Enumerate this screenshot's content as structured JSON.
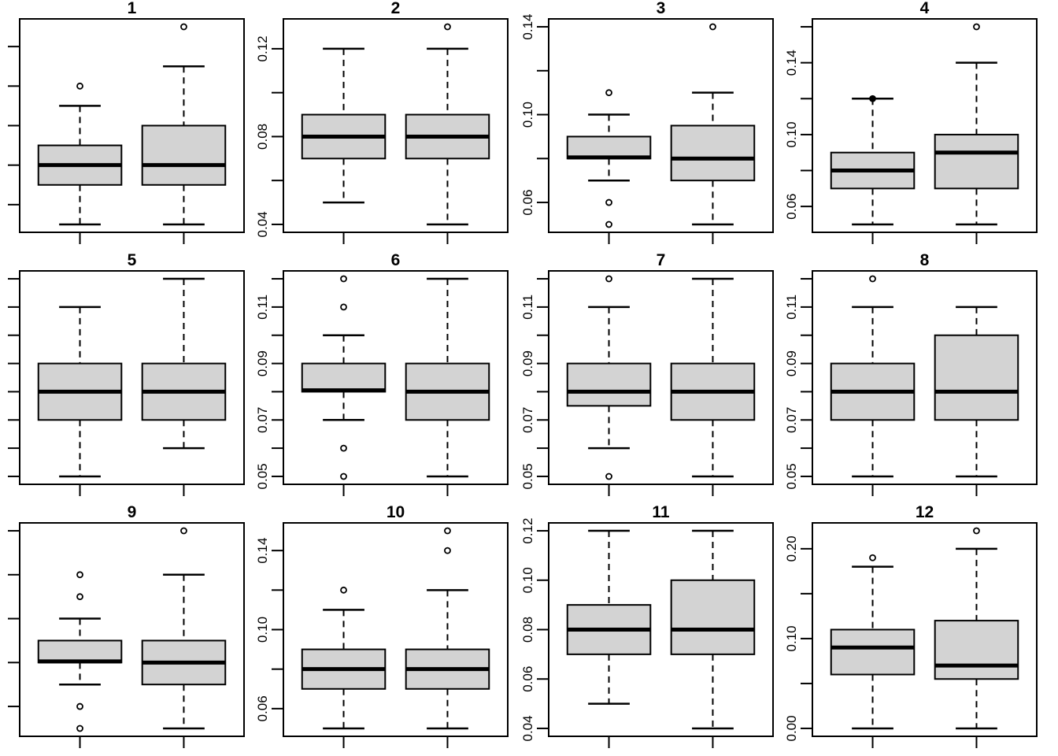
{
  "figure": {
    "type": "boxplot-grid",
    "rows": 3,
    "cols": 4,
    "background": "#ffffff",
    "line_color": "#000000",
    "box_fill": "#d3d3d3",
    "x_axis_labels": [],
    "groups_per_panel": 2
  },
  "chart_data": {
    "type": "boxplot",
    "title": "",
    "xlabel": "",
    "ylabel": "",
    "grid": false,
    "panels": [
      {
        "id": 1,
        "title": "1",
        "yticks": {
          "values": [
            0.04,
            0.06,
            0.08,
            0.1,
            0.12
          ],
          "labels": [
            null,
            null,
            null,
            null,
            null
          ],
          "labels_visible": false
        },
        "boxes": [
          {
            "low": 0.03,
            "q1": 0.05,
            "median": 0.06,
            "q3": 0.07,
            "high": 0.09,
            "outliers": [
              {
                "v": 0.1,
                "filled": false
              }
            ]
          },
          {
            "low": 0.03,
            "q1": 0.05,
            "median": 0.06,
            "q3": 0.08,
            "high": 0.11,
            "outliers": [
              {
                "v": 0.13,
                "filled": false
              }
            ]
          }
        ]
      },
      {
        "id": 2,
        "title": "2",
        "yticks": {
          "values": [
            0.04,
            0.06,
            0.08,
            0.1,
            0.12
          ],
          "labels": [
            "0.04",
            null,
            "0.08",
            null,
            "0.12"
          ],
          "labels_visible": true
        },
        "boxes": [
          {
            "low": 0.05,
            "q1": 0.07,
            "median": 0.08,
            "q3": 0.09,
            "high": 0.12,
            "outliers": []
          },
          {
            "low": 0.04,
            "q1": 0.07,
            "median": 0.08,
            "q3": 0.09,
            "high": 0.12,
            "outliers": [
              {
                "v": 0.13,
                "filled": false
              }
            ]
          }
        ]
      },
      {
        "id": 3,
        "title": "3",
        "yticks": {
          "values": [
            0.06,
            0.08,
            0.1,
            0.12,
            0.14
          ],
          "labels": [
            "0.06",
            null,
            "0.10",
            null,
            "0.14"
          ],
          "labels_visible": true
        },
        "boxes": [
          {
            "low": 0.07,
            "q1": 0.08,
            "median": 0.0805,
            "q3": 0.09,
            "high": 0.1,
            "outliers": [
              {
                "v": 0.11,
                "filled": false
              },
              {
                "v": 0.06,
                "filled": false
              },
              {
                "v": 0.05,
                "filled": false
              }
            ]
          },
          {
            "low": 0.05,
            "q1": 0.07,
            "median": 0.08,
            "q3": 0.095,
            "high": 0.11,
            "outliers": [
              {
                "v": 0.14,
                "filled": false
              }
            ]
          }
        ]
      },
      {
        "id": 4,
        "title": "4",
        "yticks": {
          "values": [
            0.06,
            0.08,
            0.1,
            0.12,
            0.14,
            0.16
          ],
          "labels": [
            "0.06",
            null,
            "0.10",
            null,
            "0.14",
            null
          ],
          "labels_visible": true
        },
        "boxes": [
          {
            "low": 0.05,
            "q1": 0.07,
            "median": 0.08,
            "q3": 0.09,
            "high": 0.12,
            "outliers": [
              {
                "v": 0.12,
                "filled": true
              }
            ]
          },
          {
            "low": 0.05,
            "q1": 0.07,
            "median": 0.09,
            "q3": 0.1,
            "high": 0.14,
            "outliers": [
              {
                "v": 0.16,
                "filled": false
              }
            ]
          }
        ]
      },
      {
        "id": 5,
        "title": "5",
        "yticks": {
          "values": [
            0.05,
            0.06,
            0.07,
            0.08,
            0.09,
            0.1,
            0.11,
            0.12
          ],
          "labels": [
            null,
            null,
            null,
            null,
            null,
            null,
            null,
            null
          ],
          "labels_visible": false
        },
        "boxes": [
          {
            "low": 0.05,
            "q1": 0.07,
            "median": 0.08,
            "q3": 0.09,
            "high": 0.11,
            "outliers": []
          },
          {
            "low": 0.06,
            "q1": 0.07,
            "median": 0.08,
            "q3": 0.09,
            "high": 0.12,
            "outliers": []
          }
        ]
      },
      {
        "id": 6,
        "title": "6",
        "yticks": {
          "values": [
            0.05,
            0.06,
            0.07,
            0.08,
            0.09,
            0.1,
            0.11,
            0.12
          ],
          "labels": [
            "0.05",
            null,
            "0.07",
            null,
            "0.09",
            null,
            "0.11",
            null
          ],
          "labels_visible": true
        },
        "boxes": [
          {
            "low": 0.07,
            "q1": 0.08,
            "median": 0.0805,
            "q3": 0.09,
            "high": 0.1,
            "outliers": [
              {
                "v": 0.12,
                "filled": false
              },
              {
                "v": 0.11,
                "filled": false
              },
              {
                "v": 0.06,
                "filled": false
              },
              {
                "v": 0.05,
                "filled": false
              }
            ]
          },
          {
            "low": 0.05,
            "q1": 0.07,
            "median": 0.08,
            "q3": 0.09,
            "high": 0.12,
            "outliers": []
          }
        ]
      },
      {
        "id": 7,
        "title": "7",
        "yticks": {
          "values": [
            0.05,
            0.06,
            0.07,
            0.08,
            0.09,
            0.1,
            0.11,
            0.12
          ],
          "labels": [
            "0.05",
            null,
            "0.07",
            null,
            "0.09",
            null,
            "0.11",
            null
          ],
          "labels_visible": true
        },
        "boxes": [
          {
            "low": 0.06,
            "q1": 0.075,
            "median": 0.08,
            "q3": 0.09,
            "high": 0.11,
            "outliers": [
              {
                "v": 0.12,
                "filled": false
              },
              {
                "v": 0.05,
                "filled": false
              }
            ]
          },
          {
            "low": 0.05,
            "q1": 0.07,
            "median": 0.08,
            "q3": 0.09,
            "high": 0.12,
            "outliers": []
          }
        ]
      },
      {
        "id": 8,
        "title": "8",
        "yticks": {
          "values": [
            0.05,
            0.06,
            0.07,
            0.08,
            0.09,
            0.1,
            0.11,
            0.12
          ],
          "labels": [
            "0.05",
            null,
            "0.07",
            null,
            "0.09",
            null,
            "0.11",
            null
          ],
          "labels_visible": true
        },
        "boxes": [
          {
            "low": 0.05,
            "q1": 0.07,
            "median": 0.08,
            "q3": 0.09,
            "high": 0.11,
            "outliers": [
              {
                "v": 0.12,
                "filled": false
              }
            ]
          },
          {
            "low": 0.05,
            "q1": 0.07,
            "median": 0.08,
            "q3": 0.1,
            "high": 0.11,
            "outliers": []
          }
        ]
      },
      {
        "id": 9,
        "title": "9",
        "yticks": {
          "values": [
            0.06,
            0.08,
            0.1,
            0.12,
            0.14
          ],
          "labels": [
            null,
            null,
            null,
            null,
            null
          ],
          "labels_visible": false
        },
        "boxes": [
          {
            "low": 0.07,
            "q1": 0.08,
            "median": 0.0805,
            "q3": 0.09,
            "high": 0.1,
            "outliers": [
              {
                "v": 0.12,
                "filled": false
              },
              {
                "v": 0.11,
                "filled": false
              },
              {
                "v": 0.06,
                "filled": false
              },
              {
                "v": 0.05,
                "filled": false
              }
            ]
          },
          {
            "low": 0.05,
            "q1": 0.07,
            "median": 0.08,
            "q3": 0.09,
            "high": 0.12,
            "outliers": [
              {
                "v": 0.14,
                "filled": false
              }
            ]
          }
        ]
      },
      {
        "id": 10,
        "title": "10",
        "yticks": {
          "values": [
            0.06,
            0.08,
            0.1,
            0.12,
            0.14
          ],
          "labels": [
            "0.06",
            null,
            "0.10",
            null,
            "0.14"
          ],
          "labels_visible": true
        },
        "boxes": [
          {
            "low": 0.05,
            "q1": 0.07,
            "median": 0.08,
            "q3": 0.09,
            "high": 0.11,
            "outliers": [
              {
                "v": 0.12,
                "filled": false
              }
            ]
          },
          {
            "low": 0.05,
            "q1": 0.07,
            "median": 0.08,
            "q3": 0.09,
            "high": 0.12,
            "outliers": [
              {
                "v": 0.15,
                "filled": false
              },
              {
                "v": 0.14,
                "filled": false
              }
            ]
          }
        ]
      },
      {
        "id": 11,
        "title": "11",
        "yticks": {
          "values": [
            0.04,
            0.06,
            0.08,
            0.1,
            0.12
          ],
          "labels": [
            "0.04",
            "0.06",
            "0.08",
            "0.10",
            "0.12"
          ],
          "labels_visible": true
        },
        "boxes": [
          {
            "low": 0.05,
            "q1": 0.07,
            "median": 0.08,
            "q3": 0.09,
            "high": 0.12,
            "outliers": []
          },
          {
            "low": 0.04,
            "q1": 0.07,
            "median": 0.08,
            "q3": 0.1,
            "high": 0.12,
            "outliers": []
          }
        ]
      },
      {
        "id": 12,
        "title": "12",
        "yticks": {
          "values": [
            0.0,
            0.05,
            0.1,
            0.15,
            0.2
          ],
          "labels": [
            "0.00",
            null,
            "0.10",
            null,
            "0.20"
          ],
          "labels_visible": true
        },
        "boxes": [
          {
            "low": 0.0,
            "q1": 0.06,
            "median": 0.09,
            "q3": 0.11,
            "high": 0.18,
            "outliers": [
              {
                "v": 0.19,
                "filled": false
              }
            ]
          },
          {
            "low": 0.0,
            "q1": 0.055,
            "median": 0.07,
            "q3": 0.12,
            "high": 0.2,
            "outliers": [
              {
                "v": 0.22,
                "filled": false
              }
            ]
          }
        ]
      }
    ]
  }
}
